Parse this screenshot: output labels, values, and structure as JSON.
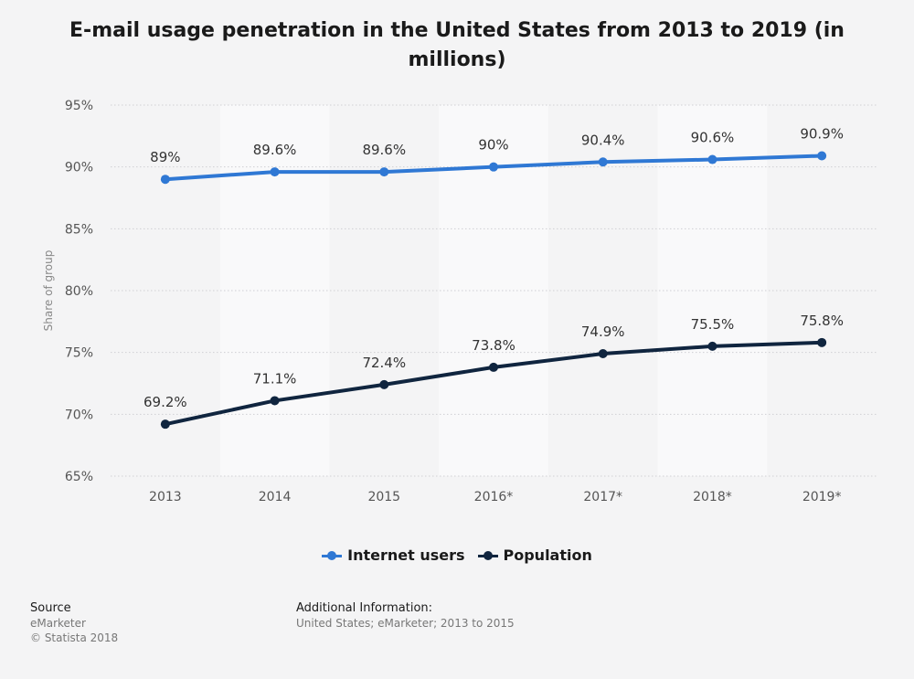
{
  "header": {
    "title_line1": "E-mail usage penetration in the United States from 2013 to 2019 (in",
    "title_line2": "millions)"
  },
  "chart_data": {
    "type": "line",
    "title": "E-mail usage penetration in the United States from 2013 to 2019 (in millions)",
    "xlabel": "",
    "ylabel": "Share of group",
    "categories": [
      "2013",
      "2014",
      "2015",
      "2016*",
      "2017*",
      "2018*",
      "2019*"
    ],
    "ylim": [
      65,
      95
    ],
    "yticks": [
      95,
      90,
      85,
      80,
      75,
      70,
      65
    ],
    "ytick_labels": [
      "95%",
      "90%",
      "85%",
      "80%",
      "75%",
      "70%",
      "65%"
    ],
    "series": [
      {
        "name": "Internet users",
        "color": "#2f78d4",
        "values": [
          89,
          89.6,
          89.6,
          90,
          90.4,
          90.6,
          90.9
        ],
        "labels": [
          "89%",
          "89.6%",
          "89.6%",
          "90%",
          "90.4%",
          "90.6%",
          "90.9%"
        ]
      },
      {
        "name": "Population",
        "color": "#10253f",
        "values": [
          69.2,
          71.1,
          72.4,
          73.8,
          74.9,
          75.5,
          75.8
        ],
        "labels": [
          "69.2%",
          "71.1%",
          "72.4%",
          "73.8%",
          "74.9%",
          "75.5%",
          "75.8%"
        ]
      }
    ],
    "legend_position": "bottom-center",
    "grid": true
  },
  "legend": {
    "item1": "Internet users",
    "item2": "Population"
  },
  "footer": {
    "source_label": "Source",
    "source_name": "eMarketer",
    "copyright": "© Statista 2018",
    "additional_label": "Additional Information:",
    "additional_text": "United States; eMarketer; 2013 to 2015"
  }
}
